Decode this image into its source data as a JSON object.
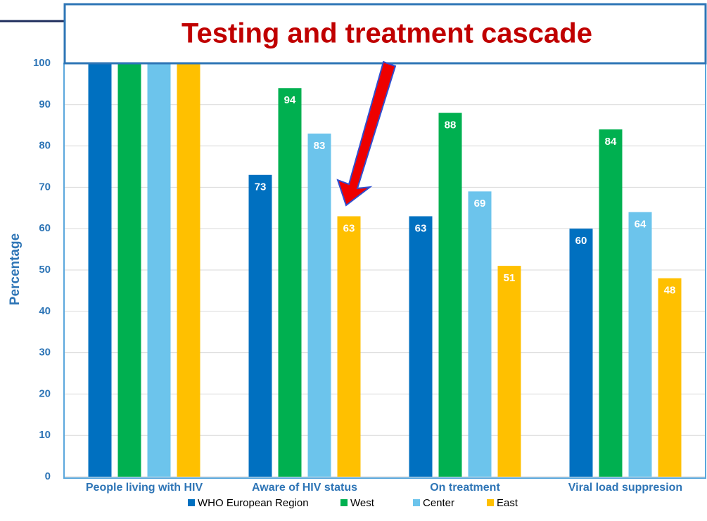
{
  "chart_data": {
    "type": "bar",
    "title": "Testing and treatment cascade",
    "ylabel": "Percentage",
    "categories": [
      "People living with HIV",
      "Aware of HIV status",
      "On treatment",
      "Viral load suppresion"
    ],
    "series": [
      {
        "name": "WHO European Region",
        "color": "#0070c0",
        "values": [
          100,
          73,
          63,
          60
        ],
        "value_labels": [
          null,
          "73",
          "63",
          "60"
        ]
      },
      {
        "name": "West",
        "color": "#00b050",
        "values": [
          100,
          94,
          88,
          84
        ],
        "value_labels": [
          null,
          "94",
          "88",
          "84"
        ]
      },
      {
        "name": "Center",
        "color": "#6cc4ec",
        "values": [
          100,
          83,
          69,
          64
        ],
        "value_labels": [
          null,
          "83",
          "69",
          "64"
        ]
      },
      {
        "name": "East",
        "color": "#ffc000",
        "values": [
          100,
          63,
          51,
          48
        ],
        "value_labels": [
          null,
          "63",
          "51",
          "48"
        ]
      }
    ],
    "ylim": [
      0,
      100
    ],
    "yticks": [
      0,
      10,
      20,
      30,
      40,
      50,
      60,
      70,
      80,
      90,
      100
    ],
    "grid": true
  }
}
